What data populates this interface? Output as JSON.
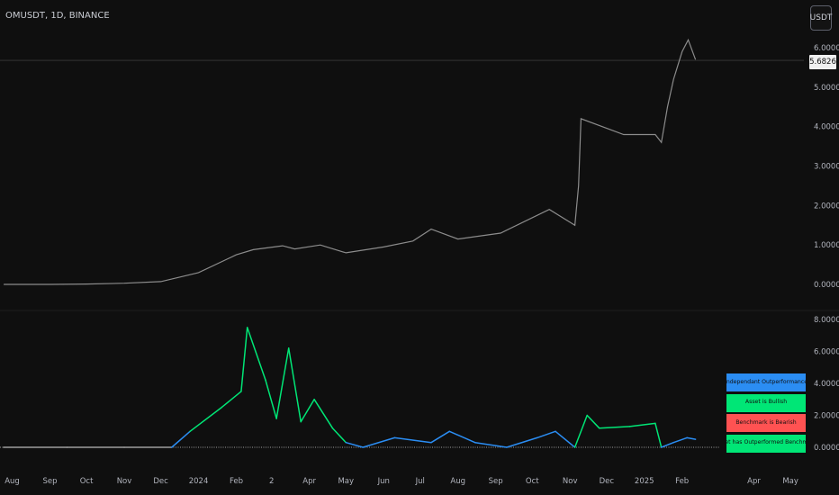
{
  "header": {
    "ticker": "OMUSDT, 1D, BINANCE",
    "currency_button": "USDT"
  },
  "colors": {
    "background": "#0f0f0f",
    "price_line": "#8c8c8c",
    "independent": "#2b8df3",
    "bullish": "#00e676",
    "bearish": "#ff5252",
    "outperformed": "#00e676",
    "baseline": "#9e9e9e"
  },
  "price_tag": "5.6826",
  "legend": [
    {
      "label": "Independant Outperformance",
      "color": "#2b8df3"
    },
    {
      "label": "Asset is Bullish",
      "color": "#00e676"
    },
    {
      "label": "Benchmark is Bearish",
      "color": "#ff5252"
    },
    {
      "label": "Asset has Outperformed Benchmark",
      "color": "#00e676"
    }
  ],
  "chart_data": [
    {
      "type": "line",
      "title": "",
      "x_tick_labels": [
        "Aug",
        "Sep",
        "Oct",
        "Nov",
        "Dec",
        "2024",
        "Feb",
        "2",
        "Apr",
        "May",
        "Jun",
        "Jul",
        "Aug",
        "Sep",
        "Oct",
        "Nov",
        "Dec",
        "2025",
        "Feb",
        "Apr",
        "May"
      ],
      "y_tick_labels": [
        "0.0000",
        "1.0000",
        "2.0000",
        "3.0000",
        "4.0000",
        "5.0000",
        "6.0000"
      ],
      "ylim": [
        0,
        6.8
      ],
      "series": [
        {
          "x": [
            "2023-07-25",
            "2023-09-01",
            "2023-10-01",
            "2023-11-01",
            "2023-12-01",
            "2024-01-01",
            "2024-02-01",
            "2024-02-15",
            "2024-03-10",
            "2024-03-20",
            "2024-04-10",
            "2024-05-01",
            "2024-06-01",
            "2024-06-25",
            "2024-07-10",
            "2024-08-01",
            "2024-09-05",
            "2024-10-15",
            "2024-11-05",
            "2024-11-08",
            "2024-11-10",
            "2024-12-15",
            "2025-01-10",
            "2025-01-15",
            "2025-01-20",
            "2025-01-25",
            "2025-02-01",
            "2025-02-06",
            "2025-02-12"
          ],
          "values": [
            0.0,
            0.0,
            0.01,
            0.03,
            0.07,
            0.3,
            0.75,
            0.88,
            0.98,
            0.9,
            1.0,
            0.8,
            0.95,
            1.1,
            1.4,
            1.15,
            1.3,
            1.9,
            1.5,
            2.5,
            4.2,
            3.8,
            3.8,
            3.6,
            4.5,
            5.2,
            5.9,
            6.2,
            5.7
          ]
        }
      ]
    },
    {
      "type": "line",
      "title": "",
      "y_tick_labels": [
        "0.0000",
        "2.0000",
        "4.0000",
        "6.0000",
        "8.0000"
      ],
      "ylim": [
        0,
        8
      ],
      "series": [
        {
          "x": [
            "2023-07-25",
            "2023-09-15",
            "2023-11-01",
            "2023-12-10",
            "2023-12-25",
            "2024-01-20",
            "2024-02-05",
            "2024-02-10",
            "2024-02-25",
            "2024-03-05",
            "2024-03-15",
            "2024-03-25",
            "2024-04-05",
            "2024-04-20",
            "2024-05-01",
            "2024-05-15",
            "2024-06-10",
            "2024-07-10",
            "2024-07-25",
            "2024-08-15",
            "2024-09-10",
            "2024-10-05",
            "2024-10-20",
            "2024-11-05",
            "2024-11-15",
            "2024-11-25",
            "2024-12-20",
            "2025-01-10",
            "2025-01-15",
            "2025-01-25",
            "2025-02-05",
            "2025-02-12"
          ],
          "values": [
            0.0,
            0.0,
            0.0,
            0.0,
            1.0,
            2.5,
            3.5,
            7.5,
            4.2,
            1.8,
            6.2,
            1.6,
            3.0,
            1.2,
            0.3,
            0.0,
            0.6,
            0.3,
            1.0,
            0.3,
            0.0,
            0.6,
            1.0,
            0.0,
            2.0,
            1.2,
            1.3,
            1.5,
            0.0,
            0.3,
            0.6,
            0.5
          ]
        }
      ]
    }
  ]
}
